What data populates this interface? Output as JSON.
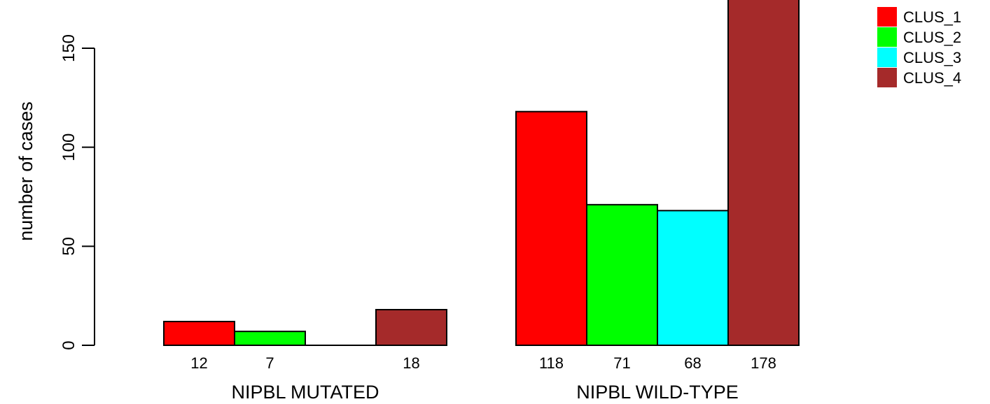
{
  "chart_data": {
    "type": "bar",
    "categories": [
      "NIPBL MUTATED",
      "NIPBL WILD-TYPE"
    ],
    "series": [
      {
        "name": "CLUS_1",
        "color": "#ff0000",
        "values": [
          12,
          118
        ]
      },
      {
        "name": "CLUS_2",
        "color": "#00ff00",
        "values": [
          7,
          71
        ]
      },
      {
        "name": "CLUS_3",
        "color": "#00ffff",
        "values": [
          0,
          68
        ]
      },
      {
        "name": "CLUS_4",
        "color": "#a52a2a",
        "values": [
          18,
          178
        ]
      }
    ],
    "value_labels": [
      [
        "12",
        "7",
        "",
        "18"
      ],
      [
        "118",
        "71",
        "68",
        "178"
      ]
    ],
    "ylabel": "number of cases",
    "yticks": [
      0,
      50,
      100,
      150
    ],
    "ylim": [
      0,
      178
    ],
    "legend_position": "top-right",
    "grid": false
  }
}
